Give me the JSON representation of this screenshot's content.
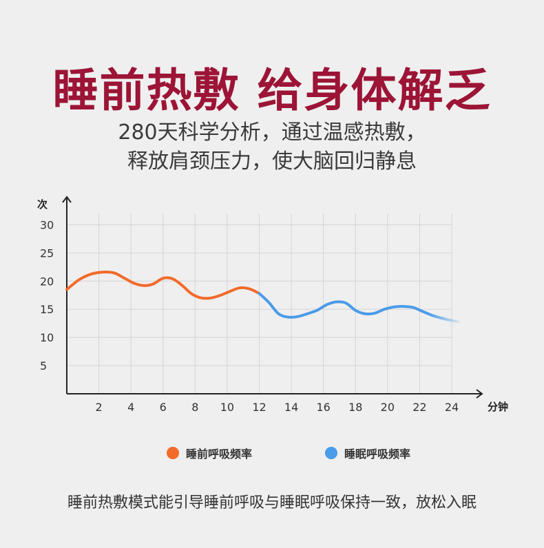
{
  "headline": "睡前热敷 给身体解乏",
  "subtitle": {
    "line1": "280天科学分析，通过温感热敷，",
    "line2": "释放肩颈压力，使大脑回归静息"
  },
  "chart_data": {
    "type": "line",
    "ylabel": "次",
    "xlabel": "分钟",
    "x_ticks": [
      2,
      4,
      6,
      8,
      10,
      12,
      14,
      16,
      18,
      20,
      22,
      24
    ],
    "y_ticks": [
      5,
      10,
      15,
      20,
      25,
      30
    ],
    "xlim": [
      0,
      24.5
    ],
    "ylim": [
      0,
      32
    ],
    "grid": true,
    "series": [
      {
        "name": "睡前呼吸频率",
        "color": "#f26a2a",
        "x": [
          0,
          0.8,
          1.6,
          2.4,
          3.0,
          3.6,
          4.2,
          4.8,
          5.4,
          6.0,
          6.6,
          7.2,
          7.8,
          8.4,
          9.0,
          9.6,
          10.2,
          10.8,
          11.4,
          12.0
        ],
        "y": [
          18.5,
          20.3,
          21.3,
          21.6,
          21.4,
          20.5,
          19.6,
          19.2,
          19.5,
          20.5,
          20.4,
          19.2,
          17.7,
          17.0,
          17.0,
          17.5,
          18.2,
          18.8,
          18.6,
          17.8
        ]
      },
      {
        "name": "睡眠呼吸频率",
        "color": "#4a9be8",
        "x": [
          12.0,
          12.6,
          13.2,
          13.8,
          14.4,
          15.0,
          15.6,
          16.2,
          16.8,
          17.4,
          18.0,
          18.6,
          19.2,
          19.8,
          20.4,
          21.0,
          21.6,
          22.2,
          22.8,
          23.4,
          24.0,
          24.4
        ],
        "y": [
          17.8,
          16.2,
          14.2,
          13.6,
          13.7,
          14.2,
          14.8,
          15.8,
          16.3,
          16.1,
          14.8,
          14.2,
          14.3,
          15.0,
          15.4,
          15.5,
          15.3,
          14.6,
          13.9,
          13.4,
          13.0,
          12.8
        ]
      }
    ]
  },
  "legend": {
    "pre_sleep": "睡前呼吸频率",
    "sleep": "睡眠呼吸频率"
  },
  "footer": "睡前热敷模式能引导睡前呼吸与睡眠呼吸保持一致，放松入眠"
}
